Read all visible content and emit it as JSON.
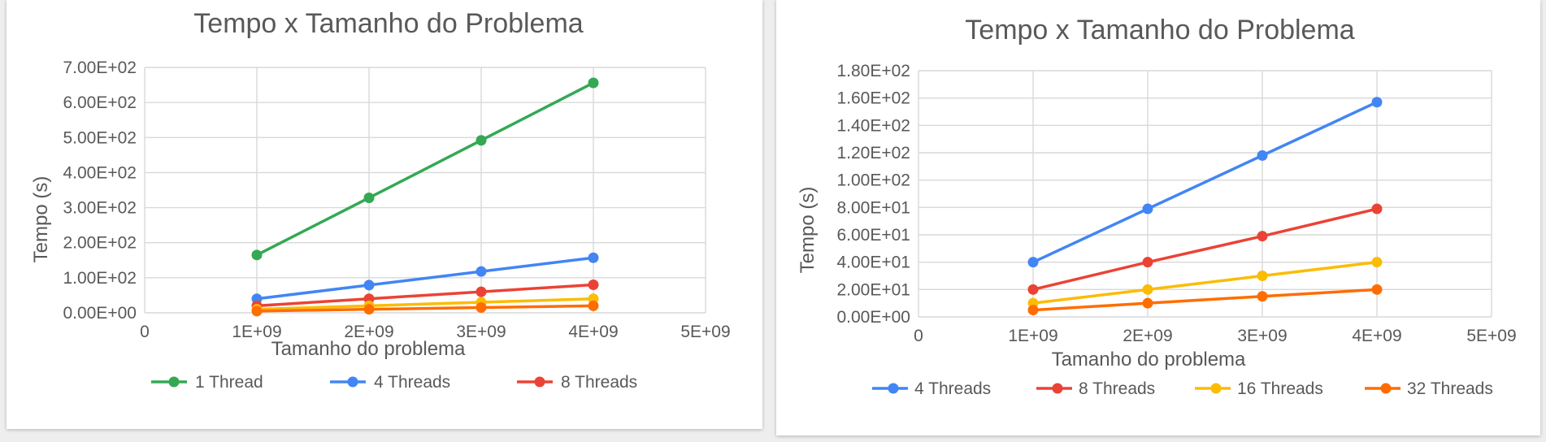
{
  "chart_data": [
    {
      "type": "scatter",
      "title": "Tempo x Tamanho do Problema",
      "xlabel": "Tamanho do problema",
      "ylabel": "Tempo (s)",
      "xlim": [
        0,
        5000000000
      ],
      "ylim": [
        0,
        700
      ],
      "x_ticks": [
        "0",
        "1E+09",
        "2E+09",
        "3E+09",
        "4E+09",
        "5E+09"
      ],
      "y_ticks": [
        "0.00E+00",
        "1.00E+02",
        "2.00E+02",
        "3.00E+02",
        "4.00E+02",
        "5.00E+02",
        "6.00E+02",
        "7.00E+02"
      ],
      "grid": true,
      "legend_position": "bottom",
      "series": [
        {
          "name": "1 Thread",
          "color": "#34a853",
          "x": [
            1000000000,
            2000000000,
            3000000000,
            4000000000
          ],
          "y": [
            165,
            328,
            492,
            656
          ]
        },
        {
          "name": "4 Threads",
          "color": "#4285f4",
          "x": [
            1000000000,
            2000000000,
            3000000000,
            4000000000
          ],
          "y": [
            40,
            79,
            118,
            157
          ]
        },
        {
          "name": "8 Threads",
          "color": "#ea4335",
          "x": [
            1000000000,
            2000000000,
            3000000000,
            4000000000
          ],
          "y": [
            20,
            40,
            60,
            80
          ]
        },
        {
          "name": "",
          "color": "#fbbc04",
          "x": [
            1000000000,
            2000000000,
            3000000000,
            4000000000
          ],
          "y": [
            10,
            20,
            30,
            40
          ]
        },
        {
          "name": "",
          "color": "#ff6d01",
          "x": [
            1000000000,
            2000000000,
            3000000000,
            4000000000
          ],
          "y": [
            5,
            10,
            15,
            20
          ]
        }
      ]
    },
    {
      "type": "scatter",
      "title": "Tempo x Tamanho do Problema",
      "xlabel": "Tamanho do problema",
      "ylabel": "Tempo (s)",
      "xlim": [
        0,
        5000000000
      ],
      "ylim": [
        0,
        180
      ],
      "x_ticks": [
        "0",
        "1E+09",
        "2E+09",
        "3E+09",
        "4E+09",
        "5E+09"
      ],
      "y_ticks": [
        "0.00E+00",
        "2.00E+01",
        "4.00E+01",
        "6.00E+01",
        "8.00E+01",
        "1.00E+02",
        "1.20E+02",
        "1.40E+02",
        "1.60E+02",
        "1.80E+02"
      ],
      "grid": true,
      "legend_position": "bottom",
      "series": [
        {
          "name": "4 Threads",
          "color": "#4285f4",
          "x": [
            1000000000,
            2000000000,
            3000000000,
            4000000000
          ],
          "y": [
            40,
            79,
            118,
            157
          ]
        },
        {
          "name": "8 Threads",
          "color": "#ea4335",
          "x": [
            1000000000,
            2000000000,
            3000000000,
            4000000000
          ],
          "y": [
            20,
            40,
            59,
            79
          ]
        },
        {
          "name": "16 Threads",
          "color": "#fbbc04",
          "x": [
            1000000000,
            2000000000,
            3000000000,
            4000000000
          ],
          "y": [
            10,
            20,
            30,
            40
          ]
        },
        {
          "name": "32 Threads",
          "color": "#ff6d01",
          "x": [
            1000000000,
            2000000000,
            3000000000,
            4000000000
          ],
          "y": [
            5,
            10,
            15,
            20
          ]
        }
      ]
    }
  ]
}
